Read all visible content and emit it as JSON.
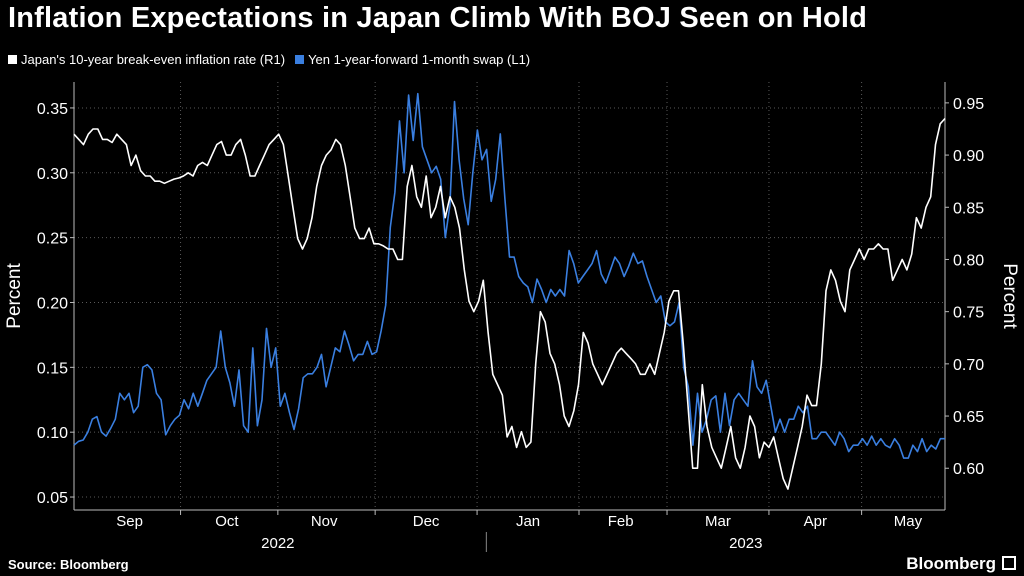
{
  "title": "Inflation Expectations in Japan Climb With BOJ Seen on Hold",
  "source": "Source: Bloomberg",
  "brand": "Bloomberg",
  "colors": {
    "background": "#000000",
    "series_white": "#ffffff",
    "series_blue": "#3a7fe0",
    "grid": "#5a5a5a"
  },
  "chart_data": {
    "type": "line",
    "left_axis": {
      "label": "Percent",
      "min": 0.04,
      "max": 0.37,
      "ticks": [
        0.05,
        0.1,
        0.15,
        0.2,
        0.25,
        0.3,
        0.35
      ]
    },
    "right_axis": {
      "label": "Percent",
      "min": 0.56,
      "max": 0.97,
      "ticks": [
        0.6,
        0.65,
        0.7,
        0.75,
        0.8,
        0.85,
        0.9,
        0.95
      ]
    },
    "x_range": [
      0,
      188
    ],
    "months": [
      {
        "label": "Sep",
        "pos": 12
      },
      {
        "label": "Oct",
        "pos": 33
      },
      {
        "label": "Nov",
        "pos": 54
      },
      {
        "label": "Dec",
        "pos": 76
      },
      {
        "label": "Jan",
        "pos": 98
      },
      {
        "label": "Feb",
        "pos": 118
      },
      {
        "label": "Mar",
        "pos": 139
      },
      {
        "label": "Apr",
        "pos": 160
      },
      {
        "label": "May",
        "pos": 180
      }
    ],
    "month_boundaries": [
      23,
      44,
      65,
      87,
      109,
      128,
      150,
      170
    ],
    "years": [
      {
        "label": "2022",
        "pos": 44
      },
      {
        "label": "2023",
        "pos": 145
      }
    ],
    "year_separator": 89,
    "series": [
      {
        "name": "Japan's 10-year break-even inflation rate (R1)",
        "axis": "right",
        "values": [
          0.92,
          0.915,
          0.91,
          0.92,
          0.925,
          0.925,
          0.915,
          0.915,
          0.912,
          0.92,
          0.915,
          0.91,
          0.89,
          0.9,
          0.885,
          0.88,
          0.88,
          0.875,
          0.875,
          0.873,
          0.875,
          0.877,
          0.878,
          0.88,
          0.883,
          0.88,
          0.89,
          0.893,
          0.89,
          0.9,
          0.91,
          0.913,
          0.9,
          0.9,
          0.91,
          0.915,
          0.9,
          0.88,
          0.88,
          0.89,
          0.9,
          0.91,
          0.915,
          0.92,
          0.91,
          0.88,
          0.85,
          0.82,
          0.81,
          0.82,
          0.84,
          0.87,
          0.89,
          0.9,
          0.905,
          0.915,
          0.91,
          0.89,
          0.86,
          0.83,
          0.82,
          0.82,
          0.83,
          0.815,
          0.815,
          0.813,
          0.81,
          0.81,
          0.8,
          0.8,
          0.87,
          0.89,
          0.86,
          0.85,
          0.88,
          0.84,
          0.85,
          0.87,
          0.84,
          0.86,
          0.85,
          0.83,
          0.79,
          0.76,
          0.75,
          0.76,
          0.78,
          0.73,
          0.69,
          0.68,
          0.67,
          0.63,
          0.64,
          0.62,
          0.635,
          0.62,
          0.625,
          0.7,
          0.75,
          0.74,
          0.71,
          0.7,
          0.68,
          0.65,
          0.64,
          0.655,
          0.68,
          0.73,
          0.72,
          0.7,
          0.69,
          0.68,
          0.69,
          0.7,
          0.71,
          0.715,
          0.71,
          0.705,
          0.7,
          0.69,
          0.69,
          0.7,
          0.69,
          0.71,
          0.73,
          0.76,
          0.77,
          0.77,
          0.72,
          0.66,
          0.6,
          0.6,
          0.68,
          0.64,
          0.62,
          0.61,
          0.6,
          0.62,
          0.64,
          0.61,
          0.6,
          0.62,
          0.65,
          0.64,
          0.61,
          0.625,
          0.62,
          0.63,
          0.61,
          0.59,
          0.58,
          0.6,
          0.62,
          0.64,
          0.67,
          0.66,
          0.66,
          0.7,
          0.77,
          0.79,
          0.78,
          0.76,
          0.75,
          0.79,
          0.8,
          0.81,
          0.8,
          0.81,
          0.81,
          0.815,
          0.81,
          0.81,
          0.78,
          0.79,
          0.8,
          0.79,
          0.805,
          0.84,
          0.83,
          0.85,
          0.86,
          0.91,
          0.93,
          0.935
        ]
      },
      {
        "name": "Yen 1-year-forward 1-month swap (L1)",
        "axis": "left",
        "values": [
          0.09,
          0.093,
          0.094,
          0.1,
          0.11,
          0.112,
          0.1,
          0.097,
          0.103,
          0.11,
          0.13,
          0.125,
          0.13,
          0.115,
          0.12,
          0.15,
          0.152,
          0.148,
          0.13,
          0.125,
          0.098,
          0.105,
          0.11,
          0.113,
          0.125,
          0.118,
          0.13,
          0.12,
          0.13,
          0.14,
          0.145,
          0.15,
          0.178,
          0.15,
          0.138,
          0.12,
          0.148,
          0.105,
          0.1,
          0.165,
          0.105,
          0.125,
          0.18,
          0.15,
          0.165,
          0.12,
          0.13,
          0.115,
          0.102,
          0.118,
          0.142,
          0.145,
          0.145,
          0.15,
          0.16,
          0.135,
          0.15,
          0.165,
          0.162,
          0.178,
          0.167,
          0.155,
          0.16,
          0.16,
          0.17,
          0.16,
          0.162,
          0.178,
          0.198,
          0.258,
          0.285,
          0.34,
          0.3,
          0.36,
          0.325,
          0.361,
          0.32,
          0.31,
          0.3,
          0.305,
          0.295,
          0.25,
          0.275,
          0.355,
          0.31,
          0.28,
          0.26,
          0.3,
          0.333,
          0.31,
          0.318,
          0.278,
          0.295,
          0.33,
          0.28,
          0.235,
          0.235,
          0.22,
          0.215,
          0.212,
          0.2,
          0.218,
          0.21,
          0.2,
          0.21,
          0.205,
          0.21,
          0.205,
          0.24,
          0.23,
          0.215,
          0.22,
          0.225,
          0.23,
          0.24,
          0.222,
          0.215,
          0.225,
          0.235,
          0.23,
          0.22,
          0.228,
          0.238,
          0.23,
          0.232,
          0.22,
          0.21,
          0.2,
          0.205,
          0.185,
          0.182,
          0.185,
          0.2,
          0.15,
          0.135,
          0.09,
          0.13,
          0.1,
          0.11,
          0.125,
          0.128,
          0.1,
          0.13,
          0.105,
          0.125,
          0.13,
          0.125,
          0.12,
          0.155,
          0.135,
          0.13,
          0.14,
          0.12,
          0.1,
          0.11,
          0.1,
          0.11,
          0.11,
          0.12,
          0.115,
          0.12,
          0.095,
          0.095,
          0.1,
          0.1,
          0.095,
          0.09,
          0.1,
          0.095,
          0.085,
          0.09,
          0.09,
          0.095,
          0.09,
          0.097,
          0.09,
          0.095,
          0.09,
          0.088,
          0.095,
          0.09,
          0.08,
          0.08,
          0.09,
          0.085,
          0.095,
          0.085,
          0.09,
          0.087,
          0.095,
          0.095
        ]
      }
    ]
  }
}
